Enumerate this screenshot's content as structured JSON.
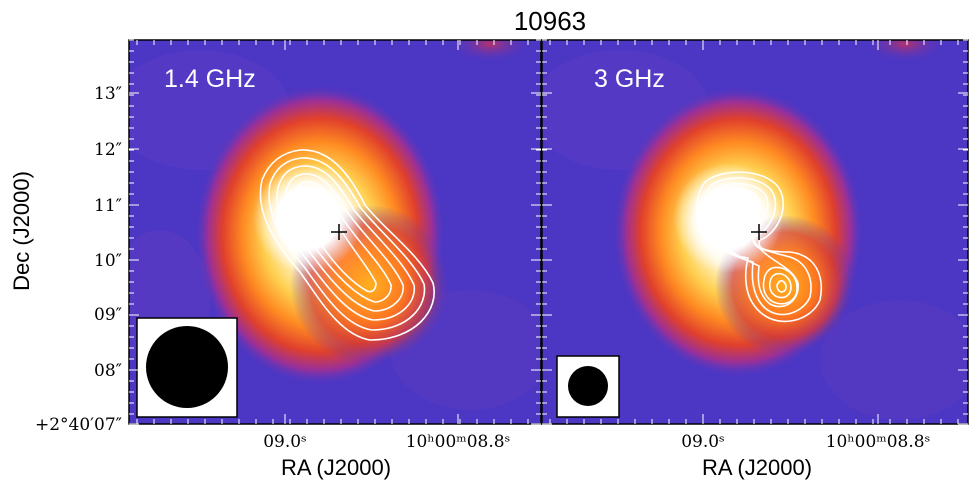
{
  "chart_data": {
    "type": "heatmap",
    "title": "10963",
    "colormap": [
      "#4a34c4",
      "#7a3cc0",
      "#c82a6e",
      "#f0541e",
      "#ffa020",
      "#ffe890",
      "#ffffff"
    ],
    "ylabel": "Dec (J2000)",
    "yticks": [
      "+2°40′07″",
      "08″",
      "09″",
      "10″",
      "11″",
      "12″",
      "13″"
    ],
    "ylim": [
      7,
      14
    ],
    "panels": [
      {
        "name": "1.4 GHz",
        "xlabel": "RA (J2000)",
        "xticks": [
          "09.0ˢ",
          "10ʰ00ᵐ08.8ˢ"
        ],
        "source_center": [
          0.45,
          10.6
        ],
        "source_extent": "elongated-southeast",
        "contour_levels": 7,
        "marker": "+",
        "marker_position": [
          0.64,
          10.45
        ],
        "beam_size": "large"
      },
      {
        "name": "3 GHz",
        "xlabel": "RA (J2000)",
        "xticks": [
          "09.0ˢ",
          "10ʰ00ᵐ08.8ˢ"
        ],
        "source_center": [
          0.45,
          10.6
        ],
        "source_extent": "two-components",
        "contour_levels": 6,
        "marker": "+",
        "marker_position": [
          0.64,
          10.45
        ],
        "beam_size": "small"
      }
    ]
  }
}
